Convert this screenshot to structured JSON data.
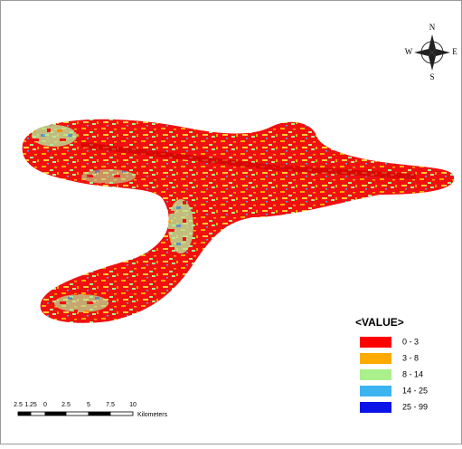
{
  "compass": {
    "north": "N",
    "south": "S",
    "east": "E",
    "west": "W"
  },
  "legend": {
    "title": "<VALUE>",
    "items": [
      {
        "label": "0 - 3",
        "color": "#ff0000"
      },
      {
        "label": "3 - 8",
        "color": "#ffaa00"
      },
      {
        "label": "8 - 14",
        "color": "#aaf08c"
      },
      {
        "label": "14 - 25",
        "color": "#3cb4f0"
      },
      {
        "label": "25 - 99",
        "color": "#0a14e6"
      }
    ]
  },
  "scale_bar": {
    "labels": [
      "2.5",
      "1.25",
      "0",
      "2.5",
      "5",
      "7.5",
      "10"
    ],
    "unit": "Kilometers"
  }
}
